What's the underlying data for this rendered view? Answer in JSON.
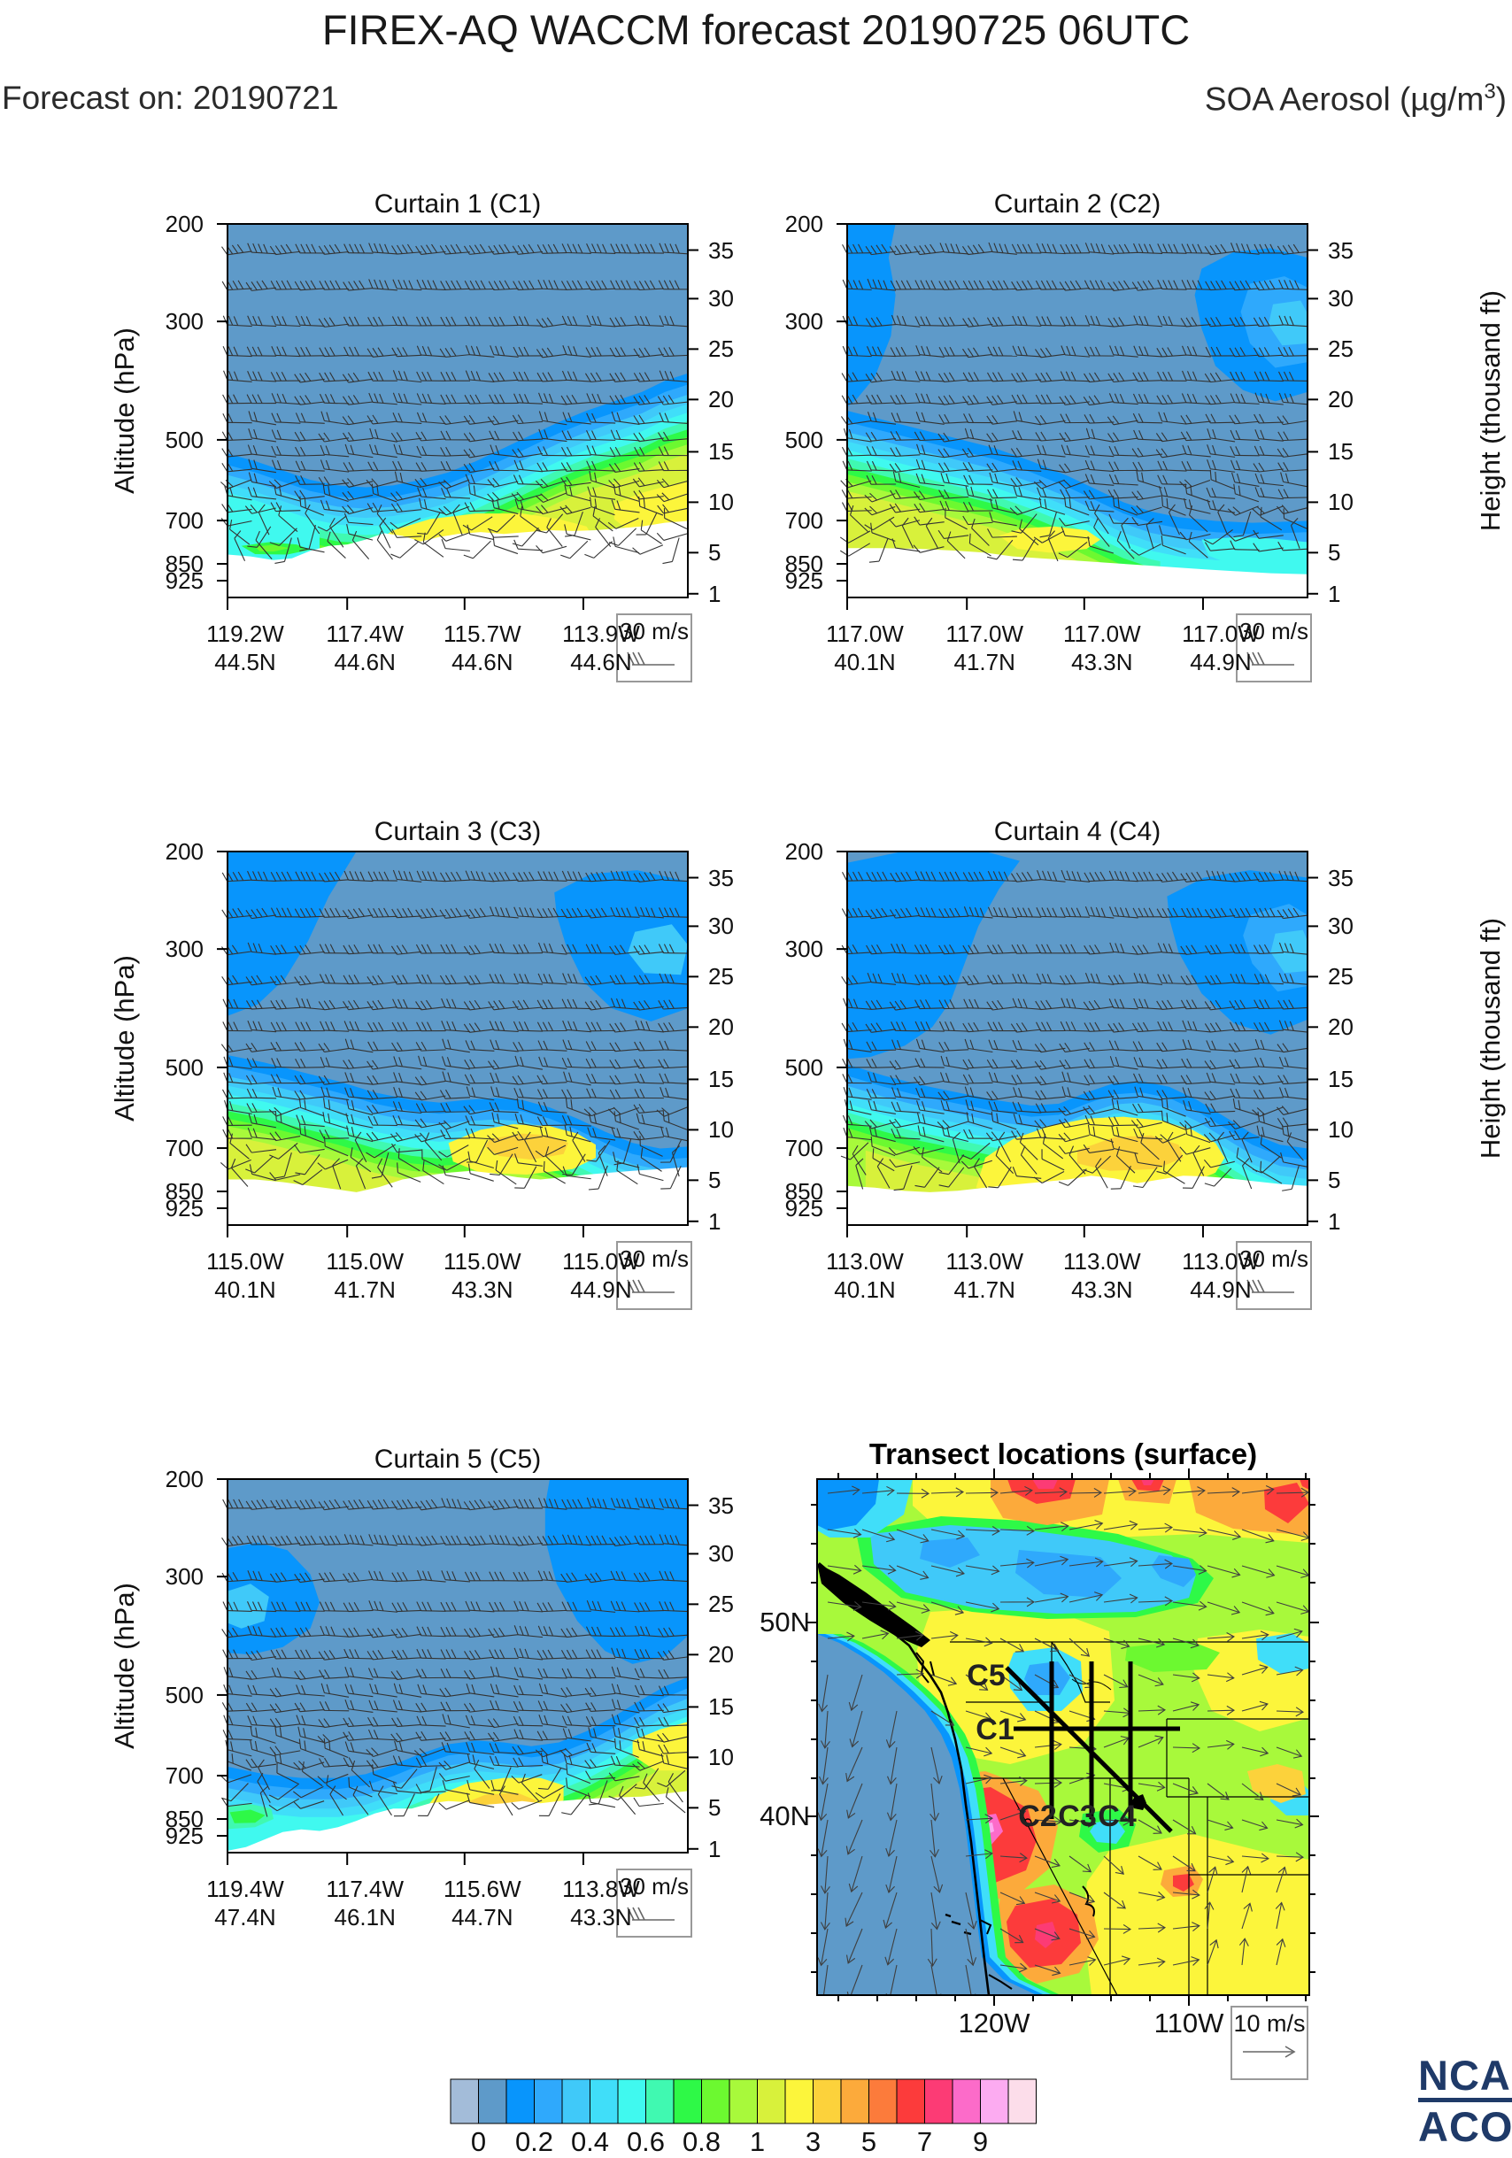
{
  "header": {
    "title": "FIREX-AQ WACCM forecast 20190725 06UTC",
    "forecast_label": "Forecast on: 20190721",
    "species_label": "SOA Aerosol (µg/m",
    "species_exp": "3",
    "species_close": ")"
  },
  "axis": {
    "pressure_title": "Altitude (hPa)",
    "height_title": "Height (thousand ft)",
    "pressure_ticks": [
      "200",
      "300",
      "500",
      "700",
      "850",
      "925"
    ],
    "height_ticks": [
      "35",
      "30",
      "25",
      "20",
      "15",
      "10",
      "5",
      "1"
    ]
  },
  "curtains": [
    {
      "title": "Curtain 1 (C1)",
      "wind_ref": "30 m/s",
      "xticks": [
        {
          "lon": "119.2W",
          "lat": "44.5N"
        },
        {
          "lon": "117.4W",
          "lat": "44.6N"
        },
        {
          "lon": "115.7W",
          "lat": "44.6N"
        },
        {
          "lon": "113.9W",
          "lat": "44.6N"
        }
      ]
    },
    {
      "title": "Curtain 2 (C2)",
      "wind_ref": "30 m/s",
      "xticks": [
        {
          "lon": "117.0W",
          "lat": "40.1N"
        },
        {
          "lon": "117.0W",
          "lat": "41.7N"
        },
        {
          "lon": "117.0W",
          "lat": "43.3N"
        },
        {
          "lon": "117.0W",
          "lat": "44.9N"
        }
      ]
    },
    {
      "title": "Curtain 3 (C3)",
      "wind_ref": "30 m/s",
      "xticks": [
        {
          "lon": "115.0W",
          "lat": "40.1N"
        },
        {
          "lon": "115.0W",
          "lat": "41.7N"
        },
        {
          "lon": "115.0W",
          "lat": "43.3N"
        },
        {
          "lon": "115.0W",
          "lat": "44.9N"
        }
      ]
    },
    {
      "title": "Curtain 4 (C4)",
      "wind_ref": "30 m/s",
      "xticks": [
        {
          "lon": "113.0W",
          "lat": "40.1N"
        },
        {
          "lon": "113.0W",
          "lat": "41.7N"
        },
        {
          "lon": "113.0W",
          "lat": "43.3N"
        },
        {
          "lon": "113.0W",
          "lat": "44.9N"
        }
      ]
    },
    {
      "title": "Curtain 5 (C5)",
      "wind_ref": "30 m/s",
      "xticks": [
        {
          "lon": "119.4W",
          "lat": "47.4N"
        },
        {
          "lon": "117.4W",
          "lat": "46.1N"
        },
        {
          "lon": "115.6W",
          "lat": "44.7N"
        },
        {
          "lon": "113.8W",
          "lat": "43.3N"
        }
      ]
    }
  ],
  "map": {
    "title": "Transect locations (surface)",
    "lat_ticks": [
      "50N",
      "40N"
    ],
    "lon_ticks": [
      "120W",
      "110W"
    ],
    "vector_ref": "10 m/s",
    "transects": [
      "C5",
      "C1",
      "C2",
      "C3",
      "C4"
    ]
  },
  "colorbar": {
    "tick_labels": [
      "0",
      "0.2",
      "0.4",
      "0.6",
      "0.8",
      "1",
      "3",
      "5",
      "7",
      "9"
    ],
    "colors": [
      "#A3BCD9",
      "#5E9AC9",
      "#0895FC",
      "#2FA9FC",
      "#40C9F9",
      "#40DEF9",
      "#40F9EF",
      "#40F9B1",
      "#2EF947",
      "#6CF930",
      "#A8F93B",
      "#D8F13B",
      "#FCF53B",
      "#FCD23B",
      "#FCAA3B",
      "#FC7B3B",
      "#FC3B3B",
      "#FC3B75",
      "#FC6BC9",
      "#FCABF1",
      "#FCDDEA"
    ]
  },
  "logo": {
    "line1": "NCAR",
    "line2": "ACOM",
    "color": "#1F3A68"
  },
  "chart_data": [
    {
      "type": "heatmap",
      "subplot": "C1",
      "title": "Curtain 1 (C1)",
      "ylabel": "Altitude (hPa)",
      "y_ticks": [
        200,
        300,
        500,
        700,
        850,
        925
      ],
      "y2label": "Height (thousand ft)",
      "y2_ticks": [
        35,
        30,
        25,
        20,
        15,
        10,
        5,
        1
      ],
      "x_points": [
        "119.2W 44.5N",
        "117.4W 44.6N",
        "115.7W 44.6N",
        "113.9W 44.6N"
      ],
      "wind_barb_reference_ms": 30,
      "units": "ug/m3"
    },
    {
      "type": "heatmap",
      "subplot": "C2",
      "title": "Curtain 2 (C2)",
      "ylabel": "Altitude (hPa)",
      "y_ticks": [
        200,
        300,
        500,
        700,
        850,
        925
      ],
      "y2label": "Height (thousand ft)",
      "y2_ticks": [
        35,
        30,
        25,
        20,
        15,
        10,
        5,
        1
      ],
      "x_points": [
        "117.0W 40.1N",
        "117.0W 41.7N",
        "117.0W 43.3N",
        "117.0W 44.9N"
      ],
      "wind_barb_reference_ms": 30,
      "units": "ug/m3"
    },
    {
      "type": "heatmap",
      "subplot": "C3",
      "title": "Curtain 3 (C3)",
      "ylabel": "Altitude (hPa)",
      "y_ticks": [
        200,
        300,
        500,
        700,
        850,
        925
      ],
      "y2label": "Height (thousand ft)",
      "y2_ticks": [
        35,
        30,
        25,
        20,
        15,
        10,
        5,
        1
      ],
      "x_points": [
        "115.0W 40.1N",
        "115.0W 41.7N",
        "115.0W 43.3N",
        "115.0W 44.9N"
      ],
      "wind_barb_reference_ms": 30,
      "units": "ug/m3"
    },
    {
      "type": "heatmap",
      "subplot": "C4",
      "title": "Curtain 4 (C4)",
      "ylabel": "Altitude (hPa)",
      "y_ticks": [
        200,
        300,
        500,
        700,
        850,
        925
      ],
      "y2label": "Height (thousand ft)",
      "y2_ticks": [
        35,
        30,
        25,
        20,
        15,
        10,
        5,
        1
      ],
      "x_points": [
        "113.0W 40.1N",
        "113.0W 41.7N",
        "113.0W 43.3N",
        "113.0W 44.9N"
      ],
      "wind_barb_reference_ms": 30,
      "units": "ug/m3"
    },
    {
      "type": "heatmap",
      "subplot": "C5",
      "title": "Curtain 5 (C5)",
      "ylabel": "Altitude (hPa)",
      "y_ticks": [
        200,
        300,
        500,
        700,
        850,
        925
      ],
      "y2label": "Height (thousand ft)",
      "y2_ticks": [
        35,
        30,
        25,
        20,
        15,
        10,
        5,
        1
      ],
      "x_points": [
        "119.4W 47.4N",
        "117.4W 46.1N",
        "115.6W 44.7N",
        "113.8W 43.3N"
      ],
      "wind_barb_reference_ms": 30,
      "units": "ug/m3"
    },
    {
      "type": "heatmap",
      "subplot": "map",
      "title": "Transect locations (surface)",
      "lat_ticks": [
        "50N",
        "40N"
      ],
      "lon_ticks": [
        "120W",
        "110W"
      ],
      "vector_reference_ms": 10,
      "transects": [
        "C1",
        "C2",
        "C3",
        "C4",
        "C5"
      ]
    },
    {
      "type": "colorbar",
      "levels": [
        0,
        0.2,
        0.4,
        0.6,
        0.8,
        1,
        3,
        5,
        7,
        9
      ]
    }
  ]
}
